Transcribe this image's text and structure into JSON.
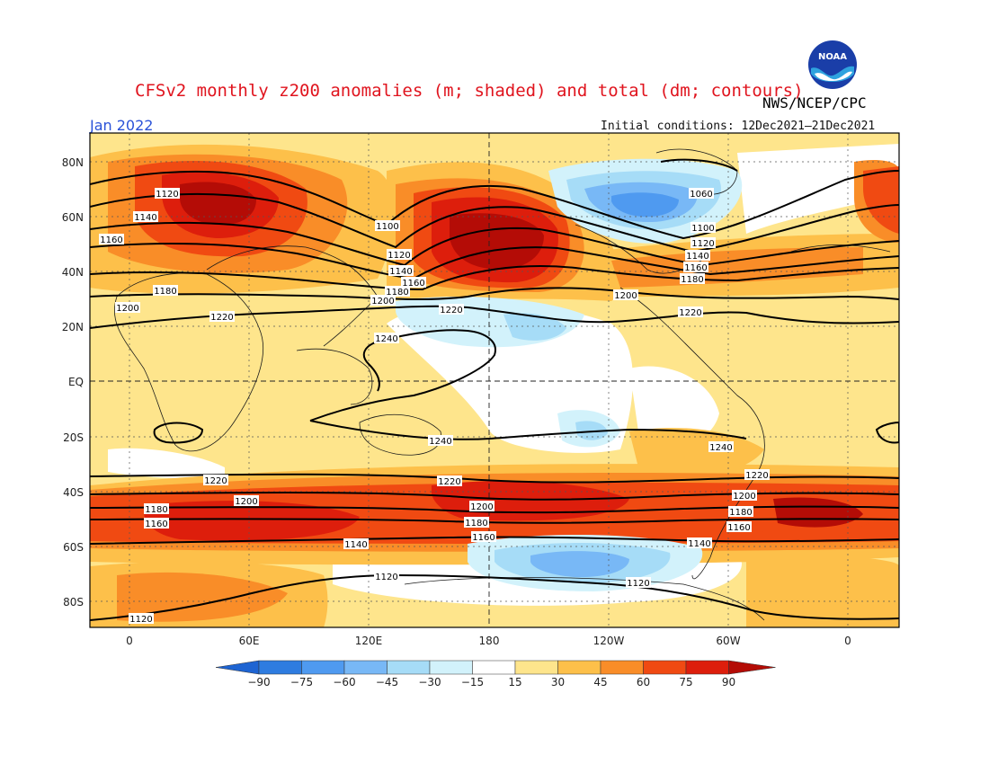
{
  "header": {
    "title": "CFSv2 monthly z200 anomalies (m; shaded) and total (dm; contours)",
    "month": "Jan 2022",
    "agency": "NWS/NCEP/CPC",
    "initial_conditions": "Initial conditions: 12Dec2021–21Dec2021",
    "logo_text": "NOAA"
  },
  "axes": {
    "lat_labels": [
      "80N",
      "60N",
      "40N",
      "20N",
      "EQ",
      "20S",
      "40S",
      "60S",
      "80S"
    ],
    "lon_labels": [
      "0",
      "60E",
      "120E",
      "180",
      "120W",
      "60W",
      "0"
    ]
  },
  "colorbar": {
    "ticks": [
      "-90",
      "-75",
      "-60",
      "-45",
      "-30",
      "-15",
      "15",
      "30",
      "45",
      "60",
      "75",
      "90"
    ],
    "colors": [
      "#1e64d2",
      "#2e7ce0",
      "#4f9af0",
      "#78b8f6",
      "#a6dcf7",
      "#d2f2fb",
      "#ffffff",
      "#fee58c",
      "#fdc04a",
      "#f98d28",
      "#f04a12",
      "#dd1e0c",
      "#b40c06"
    ]
  },
  "contour_labels": [
    "1060",
    "1100",
    "1120",
    "1140",
    "1160",
    "1180",
    "1200",
    "1220",
    "1240"
  ]
}
